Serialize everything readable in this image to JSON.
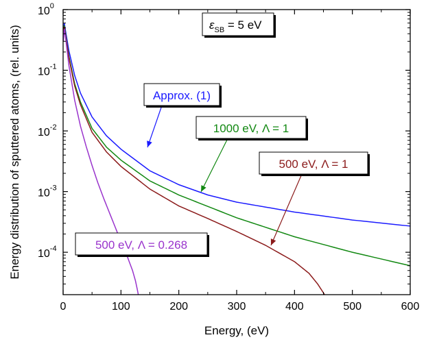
{
  "chart_data": {
    "type": "line",
    "title": "",
    "xlabel": "Energy, (eV)",
    "ylabel": "Energy distribution of sputtered atoms, (rel. units)",
    "xlim": [
      0,
      600
    ],
    "ylim": [
      2e-05,
      1
    ],
    "y_scale": "log",
    "grid": false,
    "x_ticks": [
      0,
      100,
      200,
      300,
      400,
      500,
      600
    ],
    "y_ticks": [
      {
        "value": 1,
        "base": "10",
        "exp": "0"
      },
      {
        "value": 0.1,
        "base": "10",
        "exp": "-1"
      },
      {
        "value": 0.01,
        "base": "10",
        "exp": "-2"
      },
      {
        "value": 0.001,
        "base": "10",
        "exp": "-3"
      },
      {
        "value": 0.0001,
        "base": "10",
        "exp": "-4"
      }
    ],
    "annotation": {
      "prefix": "ε",
      "sub": "SB",
      "suffix": " = 5 eV"
    },
    "series": [
      {
        "key": "approx",
        "color": "#1a1aff",
        "label": "Approx. (1)",
        "x": [
          0.5,
          2,
          5,
          10,
          20,
          30,
          50,
          75,
          100,
          150,
          200,
          250,
          300,
          400,
          500,
          600
        ],
        "y": [
          0.45,
          0.6,
          0.4,
          0.21,
          0.082,
          0.042,
          0.017,
          0.0083,
          0.005,
          0.0022,
          0.0013,
          0.00088,
          0.00067,
          0.00046,
          0.00034,
          0.00027
        ]
      },
      {
        "key": "e1000",
        "color": "#118811",
        "label": "1000 eV, Λ = 1",
        "x": [
          0.5,
          2,
          5,
          10,
          20,
          30,
          50,
          75,
          100,
          150,
          200,
          250,
          300,
          400,
          500,
          600
        ],
        "y": [
          0.4,
          0.55,
          0.35,
          0.17,
          0.06,
          0.03,
          0.011,
          0.0054,
          0.0033,
          0.0015,
          0.00088,
          0.00057,
          0.00037,
          0.00018,
          0.0001,
          6e-05
        ]
      },
      {
        "key": "e500",
        "color": "#8b1a1a",
        "label": "500 eV, Λ = 1",
        "x": [
          0.5,
          2,
          5,
          10,
          20,
          30,
          50,
          75,
          100,
          150,
          200,
          250,
          300,
          350,
          400,
          425,
          440,
          452
        ],
        "y": [
          0.38,
          0.52,
          0.33,
          0.16,
          0.055,
          0.027,
          0.0095,
          0.0045,
          0.0026,
          0.0011,
          0.00058,
          0.00036,
          0.00022,
          0.00013,
          7e-05,
          4.5e-05,
          3e-05,
          2e-05
        ]
      },
      {
        "key": "e500s",
        "color": "#9933cc",
        "label": "500 eV, Λ = 0.268",
        "x": [
          0.5,
          2,
          5,
          10,
          20,
          30,
          40,
          50,
          60,
          70,
          80,
          90,
          100,
          110,
          120,
          125,
          128,
          130
        ],
        "y": [
          0.3,
          0.48,
          0.3,
          0.12,
          0.032,
          0.012,
          0.0055,
          0.0027,
          0.0014,
          0.00078,
          0.00045,
          0.00026,
          0.00015,
          9e-05,
          5e-05,
          3.4e-05,
          2.5e-05,
          2e-05
        ]
      }
    ]
  }
}
